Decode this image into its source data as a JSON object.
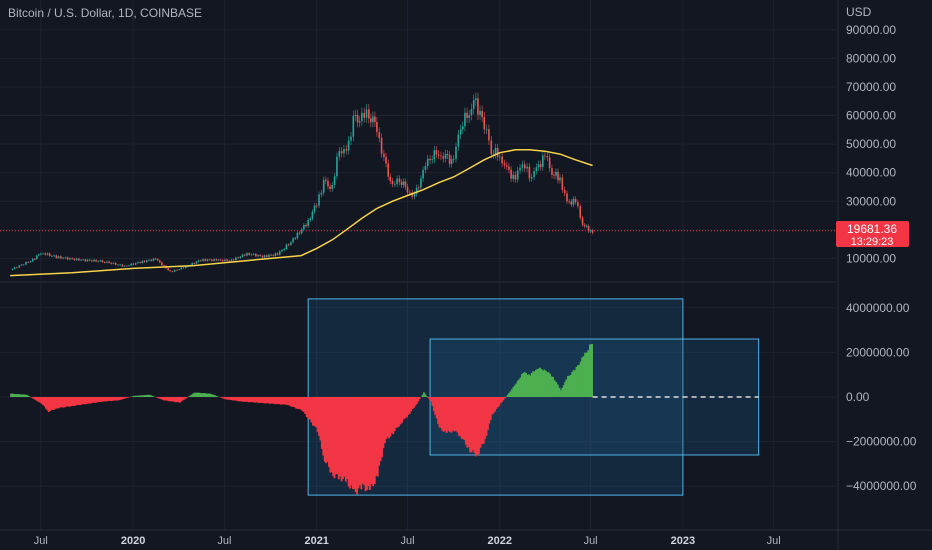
{
  "header": {
    "title": "Bitcoin / U.S. Dollar, 1D, COINBASE"
  },
  "price_badge": {
    "value": "19681.36",
    "countdown": "13:29:23",
    "color": "#f23645"
  },
  "colors": {
    "background": "#131722",
    "grid": "#1f2330",
    "candle_up": "#26a69a",
    "candle_down": "#ef5350",
    "moving_average": "#f7d34a",
    "histogram_positive": "#4caf50",
    "histogram_negative": "#f23645",
    "box_border": "#4fb3e8",
    "box_fill": "#1e5a8a"
  },
  "chart_data": [
    {
      "type": "line",
      "pane": "price",
      "ylabel": "USD",
      "ylim": [
        0,
        95000
      ],
      "y_ticks": [
        "90000.00",
        "80000.00",
        "70000.00",
        "60000.00",
        "50000.00",
        "40000.00",
        "30000.00",
        "20000.00",
        "10000.00"
      ],
      "y_tick_values": [
        90000,
        80000,
        70000,
        60000,
        50000,
        40000,
        30000,
        20000,
        10000
      ],
      "last_price": 19681.36,
      "series": [
        {
          "style": "candles",
          "x": [
            "2019-05-01",
            "2019-06-15",
            "2019-07-01",
            "2019-08-01",
            "2019-09-15",
            "2019-11-01",
            "2019-12-15",
            "2020-01-15",
            "2020-02-15",
            "2020-03-15",
            "2020-04-15",
            "2020-05-15",
            "2020-06-15",
            "2020-07-15",
            "2020-08-15",
            "2020-09-15",
            "2020-10-15",
            "2020-11-15",
            "2020-12-15",
            "2021-01-01",
            "2021-01-15",
            "2021-02-01",
            "2021-02-15",
            "2021-03-01",
            "2021-03-15",
            "2021-04-01",
            "2021-04-15",
            "2021-05-01",
            "2021-05-15",
            "2021-06-01",
            "2021-06-15",
            "2021-07-01",
            "2021-07-15",
            "2021-08-01",
            "2021-08-15",
            "2021-09-01",
            "2021-09-15",
            "2021-10-01",
            "2021-10-15",
            "2021-11-01",
            "2021-11-10",
            "2021-12-01",
            "2021-12-15",
            "2022-01-01",
            "2022-01-15",
            "2022-02-01",
            "2022-02-15",
            "2022-03-01",
            "2022-03-15",
            "2022-04-01",
            "2022-04-15",
            "2022-05-01",
            "2022-05-15",
            "2022-06-01",
            "2022-06-15",
            "2022-07-01",
            "2022-07-05"
          ],
          "values": [
            6000,
            9500,
            12000,
            10500,
            9500,
            9000,
            7300,
            8700,
            9800,
            5300,
            7100,
            9500,
            9400,
            9300,
            11700,
            10700,
            11500,
            16500,
            23000,
            29500,
            36500,
            34500,
            49000,
            47000,
            58000,
            59000,
            61000,
            56000,
            44000,
            35000,
            38000,
            34000,
            31500,
            40000,
            46000,
            47000,
            45000,
            44000,
            57000,
            61000,
            66000,
            57000,
            48000,
            46000,
            41000,
            37500,
            44000,
            39000,
            41000,
            46000,
            40000,
            38000,
            29500,
            30000,
            22000,
            19500,
            19681
          ]
        },
        {
          "name": "",
          "style": "moving-average",
          "x": [
            "2019-05-01",
            "2019-09-01",
            "2020-01-01",
            "2020-05-01",
            "2020-09-01",
            "2020-12-01",
            "2021-01-01",
            "2021-02-01",
            "2021-03-01",
            "2021-04-01",
            "2021-05-01",
            "2021-06-01",
            "2021-07-01",
            "2021-08-01",
            "2021-09-01",
            "2021-10-01",
            "2021-11-01",
            "2021-12-01",
            "2022-01-01",
            "2022-02-01",
            "2022-03-01",
            "2022-04-01",
            "2022-05-01",
            "2022-06-01",
            "2022-07-05"
          ],
          "values": [
            4000,
            5000,
            6500,
            7500,
            9500,
            11000,
            13500,
            16500,
            20000,
            24000,
            27500,
            30000,
            32000,
            34000,
            36500,
            38500,
            41500,
            44500,
            47000,
            48000,
            48000,
            47500,
            46500,
            44500,
            42500
          ]
        }
      ]
    },
    {
      "type": "bar",
      "pane": "indicator",
      "ylim": [
        -5000000,
        5000000
      ],
      "y_ticks": [
        "4000000.00",
        "2000000.00",
        "0.00",
        "−2000000.00",
        "−4000000.00"
      ],
      "y_tick_values": [
        4000000,
        2000000,
        0,
        -2000000,
        -4000000
      ],
      "x": [
        "2019-05-01",
        "2019-06-01",
        "2019-07-01",
        "2019-07-15",
        "2019-08-01",
        "2019-09-01",
        "2019-10-01",
        "2019-11-01",
        "2019-12-01",
        "2020-01-01",
        "2020-02-01",
        "2020-03-01",
        "2020-04-01",
        "2020-05-01",
        "2020-06-01",
        "2020-07-01",
        "2020-08-01",
        "2020-09-01",
        "2020-10-01",
        "2020-11-01",
        "2020-12-01",
        "2021-01-01",
        "2021-01-15",
        "2021-02-01",
        "2021-02-15",
        "2021-03-01",
        "2021-03-15",
        "2021-04-01",
        "2021-04-15",
        "2021-05-01",
        "2021-05-15",
        "2021-06-01",
        "2021-06-15",
        "2021-07-01",
        "2021-07-15",
        "2021-08-01",
        "2021-08-15",
        "2021-09-01",
        "2021-09-15",
        "2021-10-01",
        "2021-10-15",
        "2021-11-01",
        "2021-11-15",
        "2021-12-01",
        "2021-12-15",
        "2022-01-01",
        "2022-01-15",
        "2022-02-01",
        "2022-02-15",
        "2022-03-01",
        "2022-03-15",
        "2022-04-01",
        "2022-04-15",
        "2022-05-01",
        "2022-05-15",
        "2022-06-01",
        "2022-06-15",
        "2022-07-01",
        "2022-07-05"
      ],
      "values": [
        150000,
        100000,
        -300000,
        -650000,
        -500000,
        -400000,
        -300000,
        -200000,
        -150000,
        50000,
        100000,
        -150000,
        -250000,
        200000,
        150000,
        -100000,
        -200000,
        -250000,
        -300000,
        -350000,
        -600000,
        -1500000,
        -2800000,
        -3500000,
        -3600000,
        -3800000,
        -4300000,
        -4000000,
        -4200000,
        -3500000,
        -2000000,
        -1600000,
        -1200000,
        -800000,
        -400000,
        200000,
        -200000,
        -1400000,
        -1600000,
        -1500000,
        -1800000,
        -2400000,
        -2600000,
        -1900000,
        -800000,
        -300000,
        100000,
        600000,
        1100000,
        1000000,
        1300000,
        1200000,
        900000,
        300000,
        900000,
        1300000,
        1800000,
        2400000,
        2300000
      ],
      "zero_line": "dashed",
      "boxes": [
        {
          "x_start": "2020-12-15",
          "x_end": "2023-01-01",
          "y_top": 4400000,
          "y_bottom": -4400000
        },
        {
          "x_start": "2021-08-15",
          "x_end": "2023-06-01",
          "y_top": 2600000,
          "y_bottom": -2600000
        }
      ]
    }
  ],
  "x_axis": {
    "ticks": [
      {
        "label": "Jul",
        "date": "2019-07-01",
        "year": false
      },
      {
        "label": "2020",
        "date": "2020-01-01",
        "year": true
      },
      {
        "label": "Jul",
        "date": "2020-07-01",
        "year": false
      },
      {
        "label": "2021",
        "date": "2021-01-01",
        "year": true
      },
      {
        "label": "Jul",
        "date": "2021-07-01",
        "year": false
      },
      {
        "label": "2022",
        "date": "2022-01-01",
        "year": true
      },
      {
        "label": "Jul",
        "date": "2022-07-01",
        "year": false
      },
      {
        "label": "2023",
        "date": "2023-01-01",
        "year": true
      },
      {
        "label": "Jul",
        "date": "2023-07-01",
        "year": false
      }
    ]
  }
}
